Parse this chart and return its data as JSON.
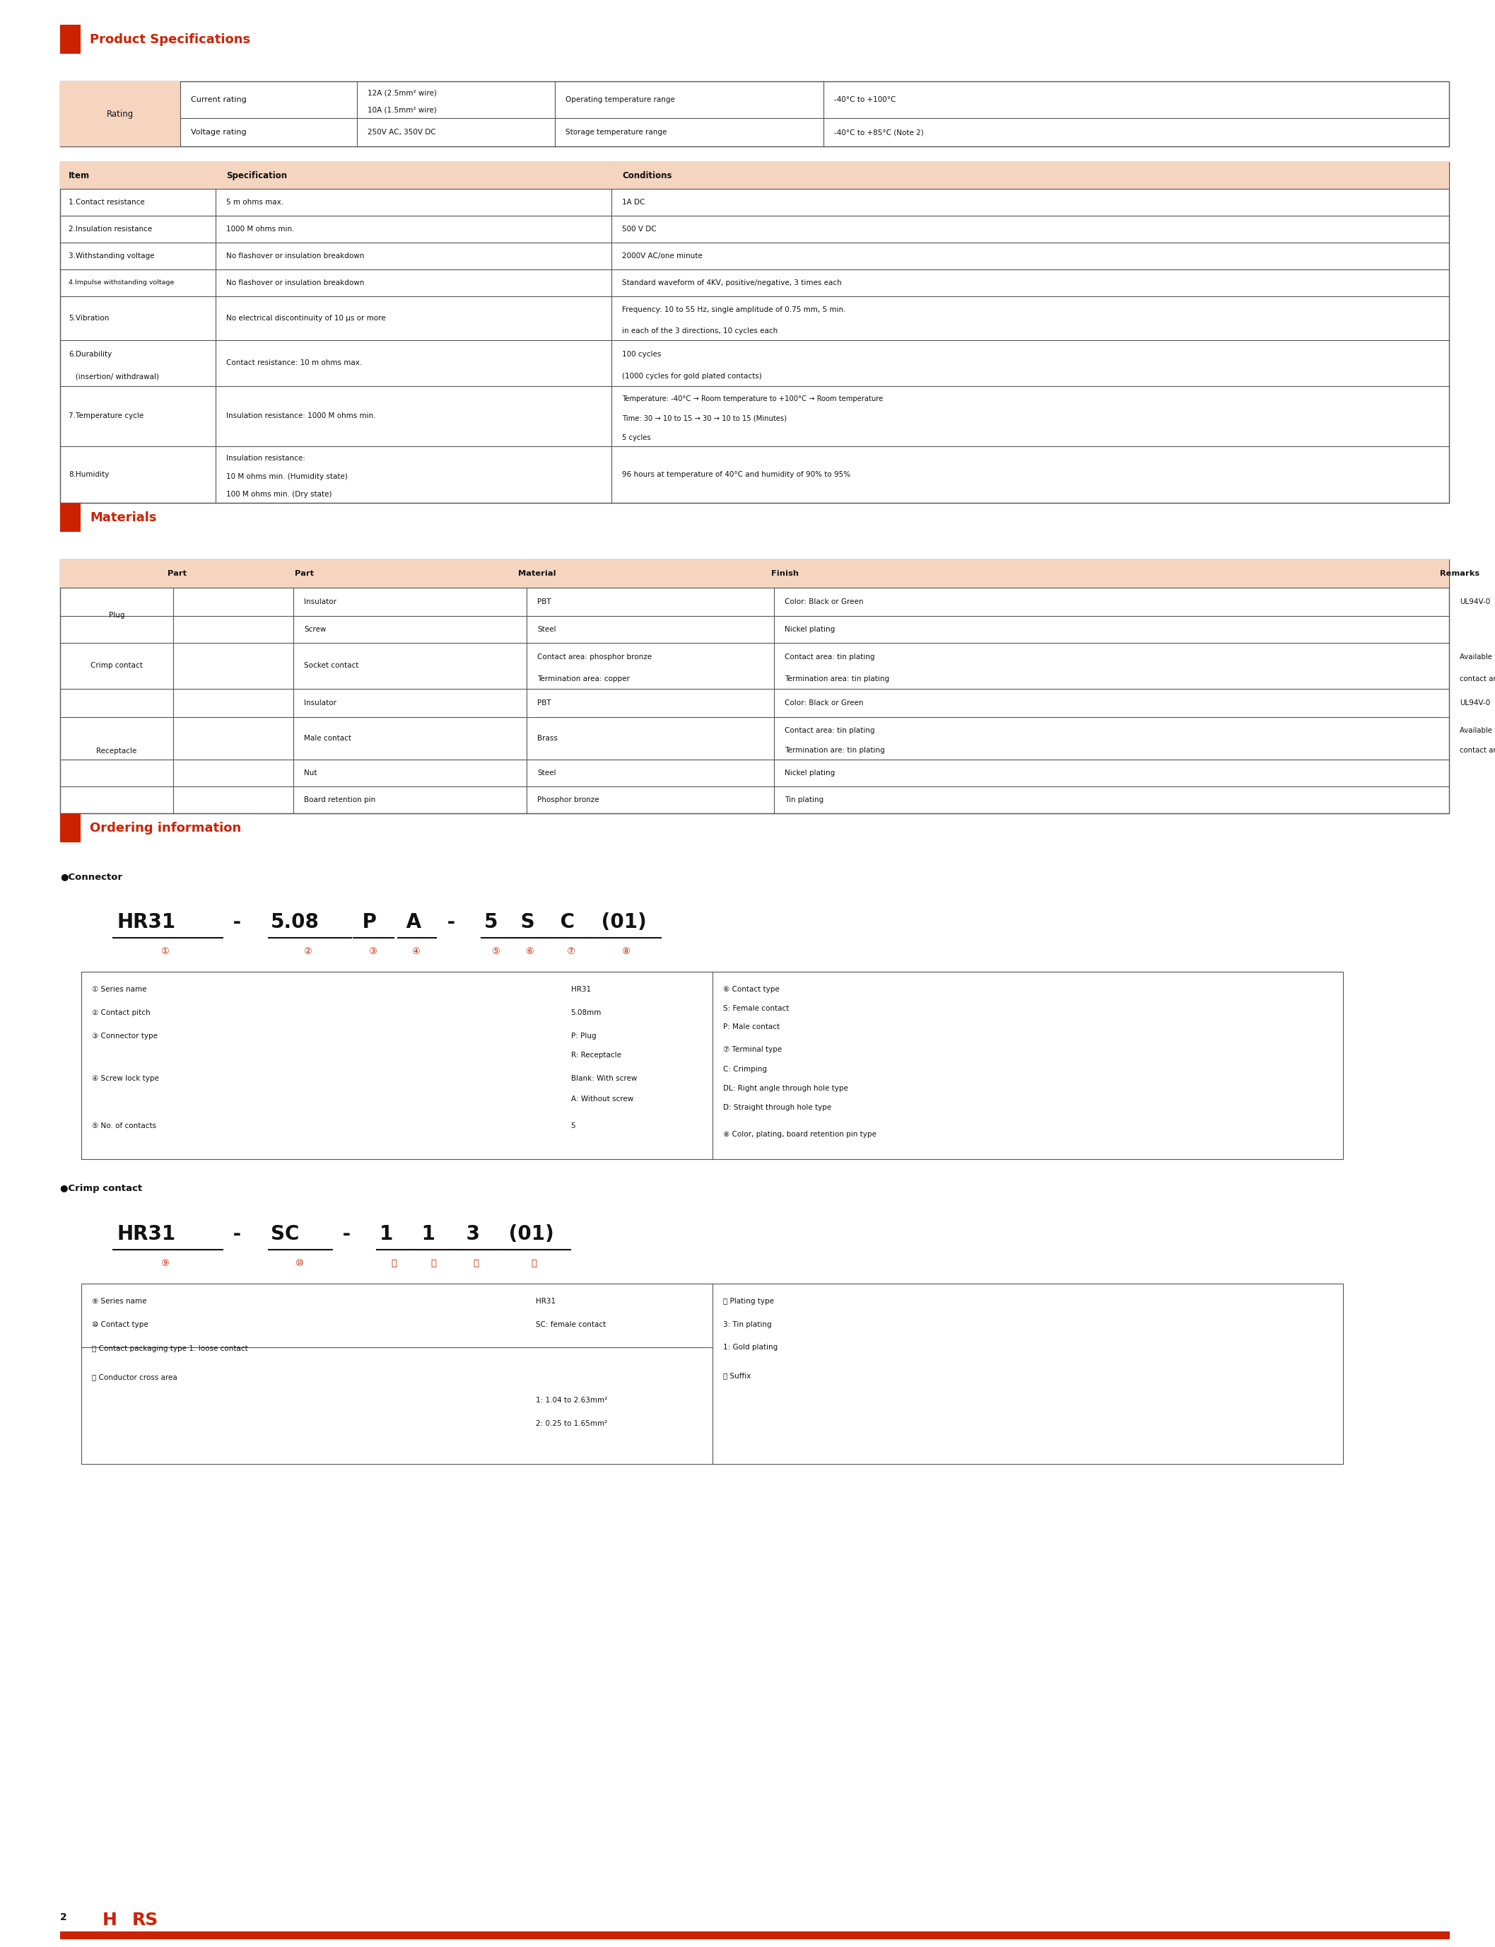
{
  "page_bg": "#ffffff",
  "accent_color": "#cc2200",
  "header_bg": "#f5d5c0",
  "table_border": "#555555",
  "text_color": "#111111",
  "section1_title": "Product Specifications",
  "section2_title": "Materials",
  "section3_title": "Ordering information",
  "page_number": "2",
  "mu": "μ",
  "deg": "°",
  "sup2": "²",
  "arrow": "→",
  "bullet": "●",
  "c1": "①",
  "c2": "②",
  "c3": "③",
  "c4": "④",
  "c5": "⑤",
  "c6": "⑥",
  "c7": "⑦",
  "c8": "⑧",
  "c9": "⑨",
  "c10": "⑩",
  "c11": "⑪",
  "c12": "⑫",
  "c13": "⑬",
  "c14": "⑭"
}
